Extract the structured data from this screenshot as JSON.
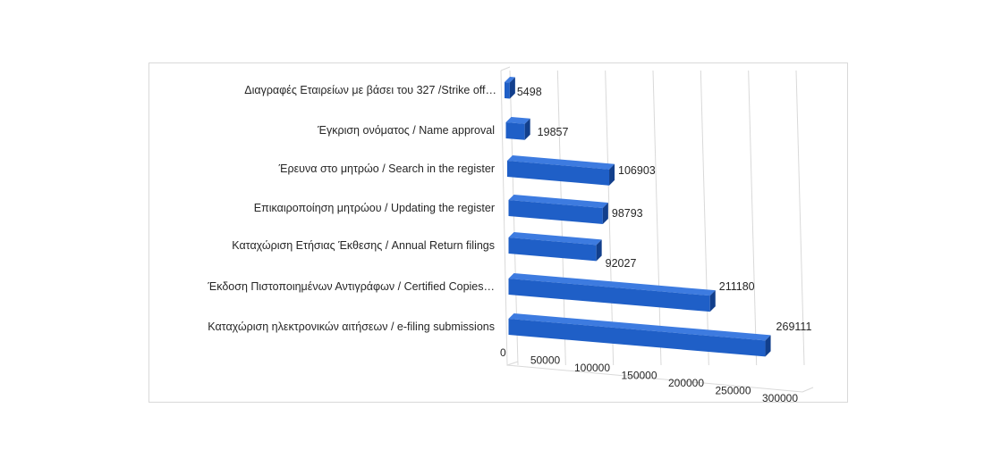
{
  "chart_data": {
    "type": "bar",
    "orientation": "horizontal",
    "style": "3d",
    "categories": [
      "Διαγραφές Εταιρείων  με  βάσει του 327 /Strike off…",
      "Έγκριση ονόματος / Name approval",
      "Έρευνα στο μητρώο / Search in the register",
      "Επικαιροποίηση μητρώου / Updating the register",
      "Καταχώριση Ετήσιας Έκθεσης / Annual Return filings",
      "Έκδοση Πιστοποιημένων Αντιγράφων  / Certified Copies…",
      "Καταχώριση ηλεκτρονικών αιτήσεων / e-filing submissions"
    ],
    "values": [
      5498,
      19857,
      106903,
      98793,
      92027,
      211180,
      269111
    ],
    "value_labels": [
      "5498",
      "19857",
      "106903",
      "98793",
      "92027",
      "211180",
      "269111"
    ],
    "xlim": [
      0,
      300000
    ],
    "ticks": [
      "0",
      "50000",
      "100000",
      "150000",
      "200000",
      "250000",
      "300000"
    ],
    "tick_values": [
      0,
      50000,
      100000,
      150000,
      200000,
      250000,
      300000
    ],
    "grid": true,
    "legend": "none",
    "title": "",
    "xlabel": "",
    "ylabel": "",
    "colors": {
      "bar_front": "#1f5fc7",
      "bar_top": "#3d7be0",
      "bar_side": "#123f8c",
      "grid": "#d9d9d9",
      "text": "#262626"
    }
  }
}
